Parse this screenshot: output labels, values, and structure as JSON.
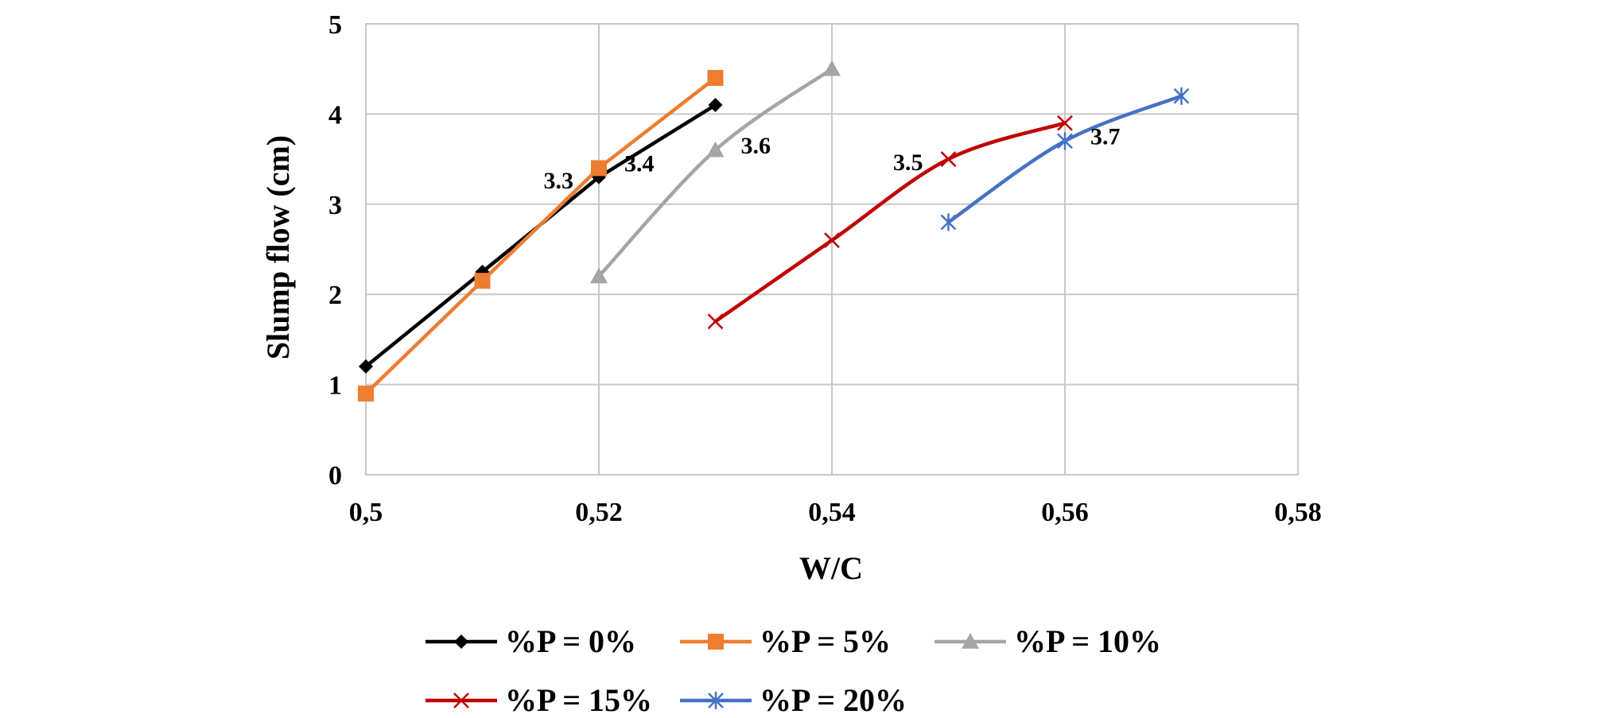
{
  "chart_data": {
    "type": "line",
    "title": "",
    "xlabel": "W/C",
    "ylabel": "Slump flow (cm)",
    "xlim": [
      0.5,
      0.58
    ],
    "ylim": [
      0,
      5
    ],
    "x_ticks": [
      0.5,
      0.52,
      0.54,
      0.56,
      0.58
    ],
    "x_tick_labels": [
      "0,5",
      "0,52",
      "0,54",
      "0,56",
      "0,58"
    ],
    "y_ticks": [
      0,
      1,
      2,
      3,
      4,
      5
    ],
    "y_tick_labels": [
      "0",
      "1",
      "2",
      "3",
      "4",
      "5"
    ],
    "grid": true,
    "legend_position": "bottom",
    "series": [
      {
        "name": "%P = 0%",
        "color": "#000000",
        "marker": "diamond",
        "smooth": false,
        "x": [
          0.5,
          0.51,
          0.52,
          0.53
        ],
        "y": [
          1.2,
          2.25,
          3.3,
          4.1
        ]
      },
      {
        "name": "%P = 5%",
        "color": "#ED7D31",
        "marker": "square",
        "smooth": false,
        "x": [
          0.5,
          0.51,
          0.52,
          0.53
        ],
        "y": [
          0.9,
          2.15,
          3.4,
          4.4
        ]
      },
      {
        "name": "%P = 10%",
        "color": "#A5A5A5",
        "marker": "triangle",
        "smooth": true,
        "x": [
          0.52,
          0.53,
          0.54
        ],
        "y": [
          2.2,
          3.6,
          4.5
        ]
      },
      {
        "name": "%P = 15%",
        "color": "#C00000",
        "marker": "x",
        "smooth": true,
        "x": [
          0.53,
          0.54,
          0.55,
          0.56
        ],
        "y": [
          1.7,
          2.6,
          3.5,
          3.9
        ]
      },
      {
        "name": "%P = 20%",
        "color": "#4472C4",
        "marker": "star",
        "smooth": true,
        "x": [
          0.55,
          0.56,
          0.57
        ],
        "y": [
          2.8,
          3.7,
          4.2
        ]
      }
    ],
    "annotations": [
      {
        "text": "3.3",
        "x": 0.52,
        "y": 3.3,
        "anchor": "left"
      },
      {
        "text": "3.4",
        "x": 0.52,
        "y": 3.4,
        "anchor": "right"
      },
      {
        "text": "3.6",
        "x": 0.53,
        "y": 3.6,
        "anchor": "right"
      },
      {
        "text": "3.5",
        "x": 0.55,
        "y": 3.5,
        "anchor": "left"
      },
      {
        "text": "3.7",
        "x": 0.56,
        "y": 3.7,
        "anchor": "right"
      }
    ]
  }
}
